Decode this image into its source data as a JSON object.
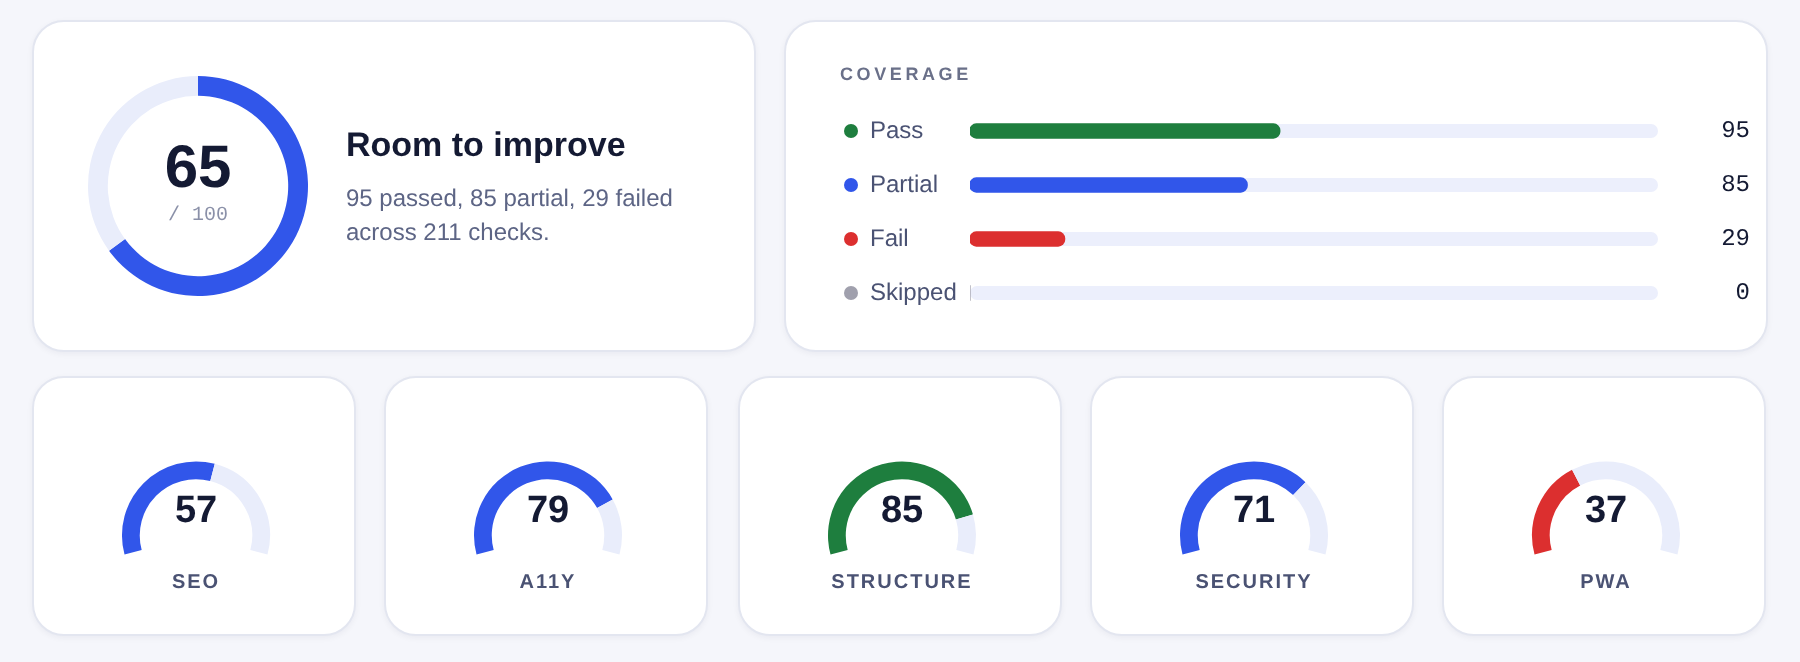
{
  "chart_data": [
    {
      "type": "donut",
      "title": "Room to improve",
      "subtitle": "95 passed, 85 partial, 29 failed across 211 checks.",
      "categories": [
        null,
        null
      ],
      "values": [
        65,
        35
      ],
      "colors": [
        "#3156ea",
        "#e9edfb"
      ],
      "value_labels": [
        "65",
        null
      ],
      "annotations": [
        "/ 100"
      ]
    },
    {
      "type": "bar",
      "orientation": "horizontal",
      "title": "COVERAGE",
      "categories": [
        "Pass",
        "Partial",
        "Fail",
        "Skipped"
      ],
      "values": [
        95,
        85,
        29,
        0
      ],
      "colors": [
        "#1e7e3e",
        "#3156ea",
        "#dc2f2f",
        "#a0a0ad"
      ],
      "xlim": [
        0,
        211
      ],
      "data_labels": true,
      "tick_labels": "y"
    },
    {
      "type": "donut",
      "title": "SEO",
      "categories": [
        null,
        null
      ],
      "values": [
        57,
        43
      ],
      "colors": [
        "#3156ea",
        "#e9edfb"
      ],
      "annotations": [
        "57"
      ]
    },
    {
      "type": "donut",
      "title": "A11Y",
      "categories": [
        null,
        null
      ],
      "values": [
        79,
        21
      ],
      "colors": [
        "#3156ea",
        "#e9edfb"
      ],
      "annotations": [
        "79"
      ]
    },
    {
      "type": "donut",
      "title": "STRUCTURE",
      "categories": [
        null,
        null
      ],
      "values": [
        85,
        15
      ],
      "colors": [
        "#1e7e3e",
        "#e9edfb"
      ],
      "annotations": [
        "85"
      ]
    },
    {
      "type": "donut",
      "title": "SECURITY",
      "categories": [
        null,
        null
      ],
      "values": [
        71,
        29
      ],
      "colors": [
        "#3156ea",
        "#e9edfb"
      ],
      "annotations": [
        "71"
      ]
    },
    {
      "type": "donut",
      "title": "PWA",
      "categories": [
        null,
        null
      ],
      "values": [
        37,
        63
      ],
      "colors": [
        "#dc2f2f",
        "#e9edfb"
      ],
      "annotations": [
        "37"
      ]
    }
  ]
}
